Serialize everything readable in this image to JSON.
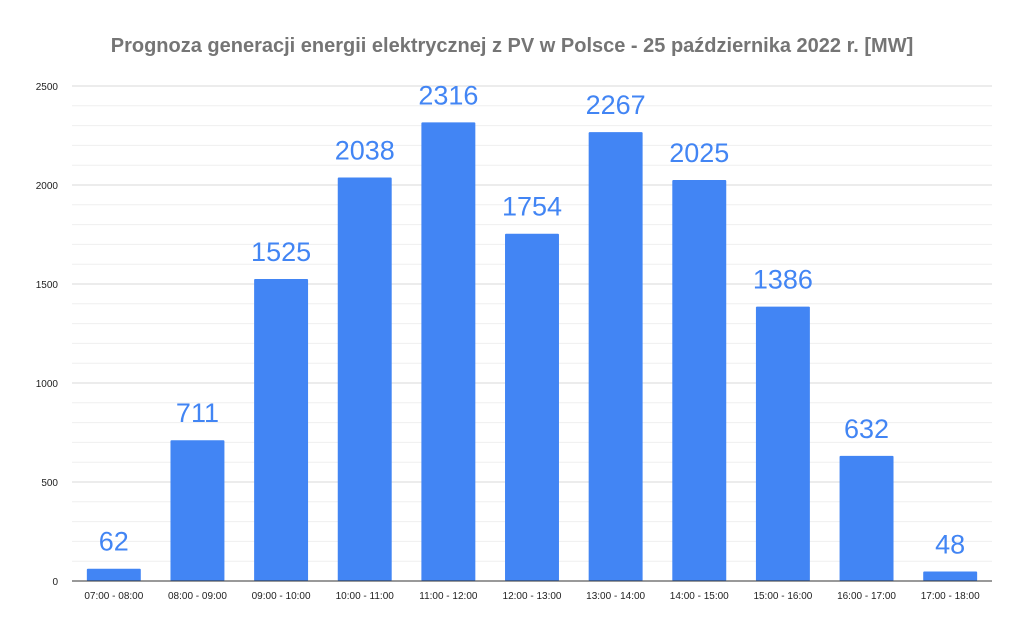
{
  "chart_data": {
    "type": "bar",
    "title": "Prognoza generacji energii elektrycznej z PV w Polsce - 25 października 2022 r. [MW]",
    "xlabel": "",
    "ylabel": "",
    "categories": [
      "07:00 - 08:00",
      "08:00 - 09:00",
      "09:00 - 10:00",
      "10:00 - 11:00",
      "11:00 - 12:00",
      "12:00 - 13:00",
      "13:00 - 14:00",
      "14:00 - 15:00",
      "15:00 - 16:00",
      "16:00 - 17:00",
      "17:00 - 18:00"
    ],
    "values": [
      62,
      711,
      1525,
      2038,
      2316,
      1754,
      2267,
      2025,
      1386,
      632,
      48
    ],
    "ylim": [
      0,
      2500
    ],
    "yticks": [
      0,
      500,
      1000,
      1500,
      2000,
      2500
    ],
    "grid": true,
    "legend": "none",
    "colors": {
      "bar": "#4285f4",
      "data_label": "#4285f4",
      "major_grid": "#d9d9d9",
      "minor_grid": "#efefef",
      "axis": "#333333"
    }
  }
}
